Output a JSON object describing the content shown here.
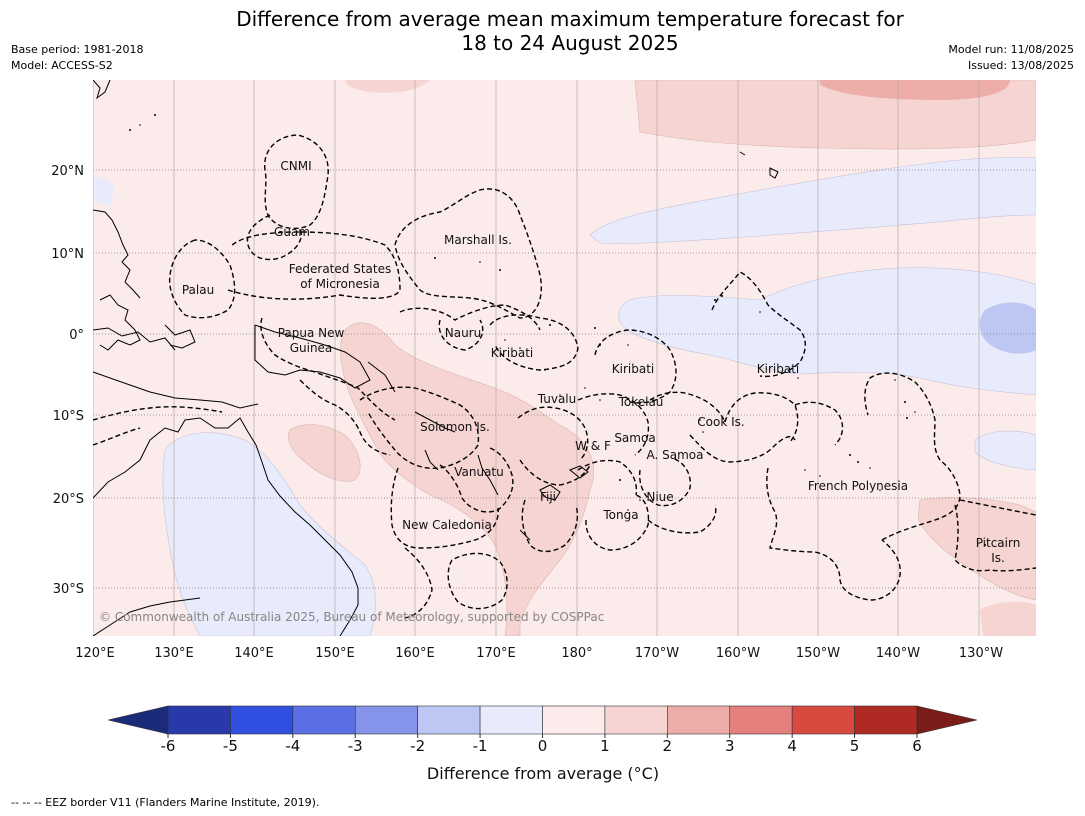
{
  "title": {
    "line1": "Difference from average mean maximum temperature forecast for",
    "line2": "18 to 24 August 2025"
  },
  "meta_left": {
    "base_period": "Base period: 1981-2018",
    "model": "Model: ACCESS-S2"
  },
  "meta_right": {
    "model_run": "Model run: 11/08/2025",
    "issued": "Issued: 13/08/2025"
  },
  "map": {
    "lon_labels": [
      "120°E",
      "130°E",
      "140°E",
      "150°E",
      "160°E",
      "170°E",
      "180°",
      "170°W",
      "160°W",
      "150°W",
      "140°W",
      "130°W"
    ],
    "lat_labels": [
      "20°N",
      "10°N",
      "0°",
      "10°S",
      "20°S",
      "30°S"
    ],
    "regions": {
      "cnmi": "CNMI",
      "guam": "Guam",
      "marshall": "Marshall Is.",
      "fsm1": "Federated States",
      "fsm2": "of Micronesia",
      "palau": "Palau",
      "png1": "Papua New",
      "png2": "Guinea",
      "nauru": "Nauru",
      "kiribati_w": "Kiribati",
      "kiribati_c": "Kiribati",
      "kiribati_e": "Kiribati",
      "tuvalu": "Tuvalu",
      "tokelau": "Tokelau",
      "cook": "Cook Is.",
      "solomon": "Solomon Is.",
      "samoa": "Samoa",
      "wf": "W & F",
      "asamoa": "A. Samoa",
      "vanuatu": "Vanuatu",
      "fiji": "Fiji",
      "niue": "Niue",
      "tonga": "Tonga",
      "newcal": "New Caledonia",
      "frpoly": "French Polynesia",
      "pitcairn1": "Pitcairn",
      "pitcairn2": "Is."
    },
    "copyright": "© Commonwealth of Australia 2025, Bureau of Meteorology, supported by COSPPac"
  },
  "colorbar": {
    "ticks": [
      "-6",
      "-5",
      "-4",
      "-3",
      "-2",
      "-1",
      "0",
      "1",
      "2",
      "3",
      "4",
      "5",
      "6"
    ],
    "colors": [
      "#2839a9",
      "#2f4fe0",
      "#5a70e4",
      "#8594ea",
      "#bec6f3",
      "#e8ebfb",
      "#fbeceb",
      "#f5d4d1",
      "#edaeaa",
      "#e4817c",
      "#d84a40",
      "#ae2a22"
    ],
    "under_color": "#1c2a7a",
    "over_color": "#7a1c18",
    "label": "Difference from average (°C)"
  },
  "footer": "-- -- -- EEZ border V11 (Flanders Marine Institute, 2019)."
}
